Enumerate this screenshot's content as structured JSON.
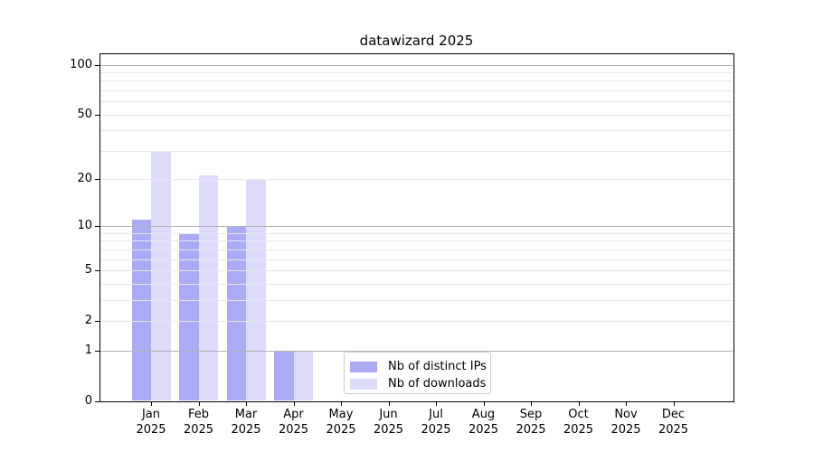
{
  "chart_data": {
    "type": "bar",
    "title": "datawizard 2025",
    "categories": [
      "Jan",
      "Feb",
      "Mar",
      "Apr",
      "May",
      "Jun",
      "Jul",
      "Aug",
      "Sep",
      "Oct",
      "Nov",
      "Dec"
    ],
    "x_year_label": "2025",
    "series": [
      {
        "name": "Nb of distinct IPs",
        "color": "#aaaaf5",
        "values": [
          11,
          9,
          10,
          1,
          0,
          0,
          0,
          0,
          0,
          0,
          0,
          0
        ]
      },
      {
        "name": "Nb of downloads",
        "color": "#dcdcfa",
        "values": [
          30,
          21,
          20,
          1,
          0,
          0,
          0,
          0,
          0,
          0,
          0,
          0
        ]
      }
    ],
    "xlabel": "",
    "ylabel": "",
    "y_scale": "log10(1+x)",
    "ylim": [
      0,
      117
    ],
    "y_ticks": [
      0,
      1,
      2,
      5,
      10,
      20,
      50,
      100
    ],
    "y_major_gridlines": [
      1,
      10,
      100
    ],
    "y_minor_gridlines": [
      2,
      3,
      4,
      5,
      6,
      7,
      8,
      9,
      20,
      30,
      40,
      50,
      60,
      70,
      80,
      90
    ],
    "grid": true,
    "legend_position": "lower center"
  },
  "style": {
    "major_grid_color": "#b2b2b2",
    "minor_grid_color": "#e8e8e8",
    "axis_color": "#000000",
    "text_color": "#000000",
    "legend_border_color": "#cccccc",
    "background": "#ffffff"
  }
}
